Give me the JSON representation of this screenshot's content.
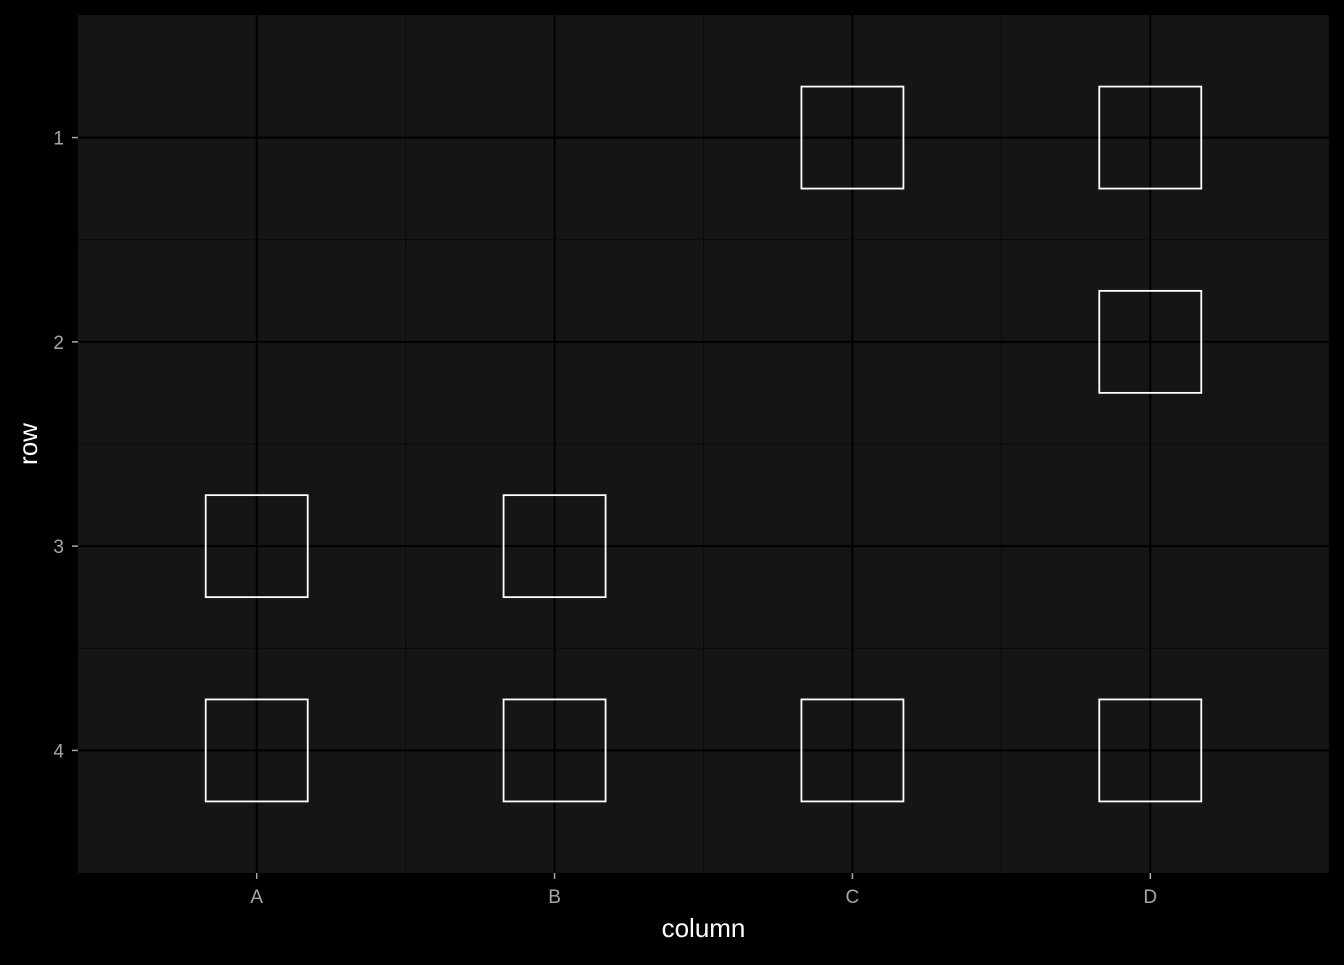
{
  "chart_data": {
    "type": "scatter",
    "marker": "open-square",
    "title": "",
    "xlabel": "column",
    "ylabel": "row",
    "x_categories": [
      "A",
      "B",
      "C",
      "D"
    ],
    "y_categories": [
      "1",
      "2",
      "3",
      "4"
    ],
    "y_reversed": true,
    "grid": true,
    "points": [
      {
        "x": "C",
        "y": "1"
      },
      {
        "x": "D",
        "y": "1"
      },
      {
        "x": "D",
        "y": "2"
      },
      {
        "x": "A",
        "y": "3"
      },
      {
        "x": "B",
        "y": "3"
      },
      {
        "x": "A",
        "y": "4"
      },
      {
        "x": "B",
        "y": "4"
      },
      {
        "x": "C",
        "y": "4"
      },
      {
        "x": "D",
        "y": "4"
      }
    ],
    "colors": {
      "background": "#000000",
      "panel": "#151515",
      "grid_major": "#000000",
      "grid_minor": "#0a0a0a",
      "marker_stroke": "#ffffff",
      "tick_text": "#a6a6a6",
      "axis_title": "#ffffff"
    }
  }
}
